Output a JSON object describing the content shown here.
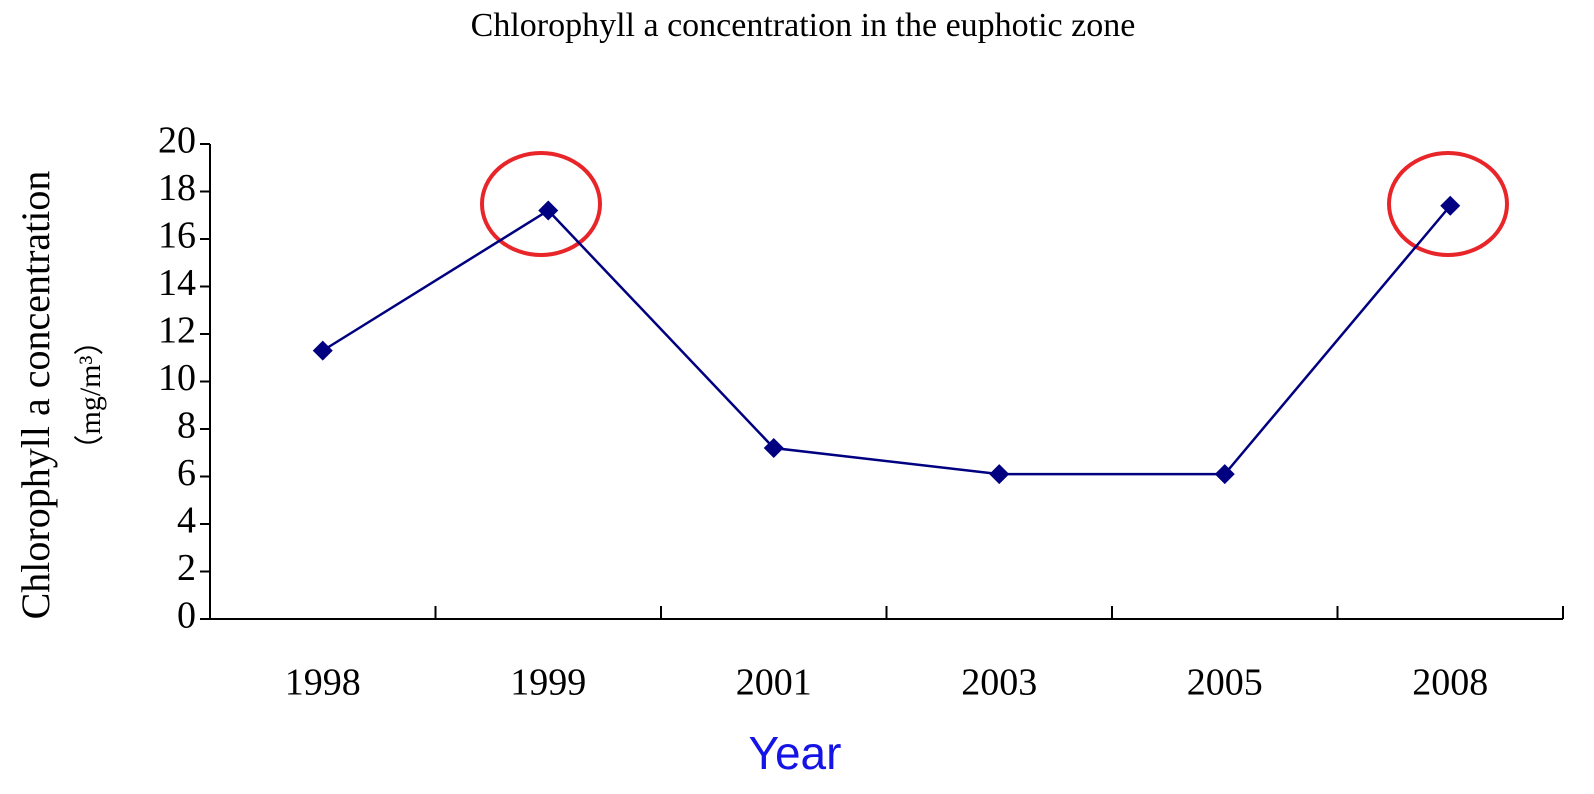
{
  "chart_data": {
    "type": "line",
    "title": "Chlorophyll a concentration  in the euphotic zone",
    "ylabel": "Chlorophyll a concentration",
    "ylabel_unit": "（mg/m³）",
    "xlabel": "Year",
    "categories": [
      "1998",
      "1999",
      "2001",
      "2003",
      "2005",
      "2008"
    ],
    "values": [
      11.3,
      17.2,
      7.2,
      6.1,
      6.1,
      17.4
    ],
    "color": "#000080",
    "ylim": [
      0,
      20
    ],
    "yticks": [
      0,
      2,
      4,
      6,
      8,
      10,
      12,
      14,
      16,
      18,
      20
    ]
  }
}
